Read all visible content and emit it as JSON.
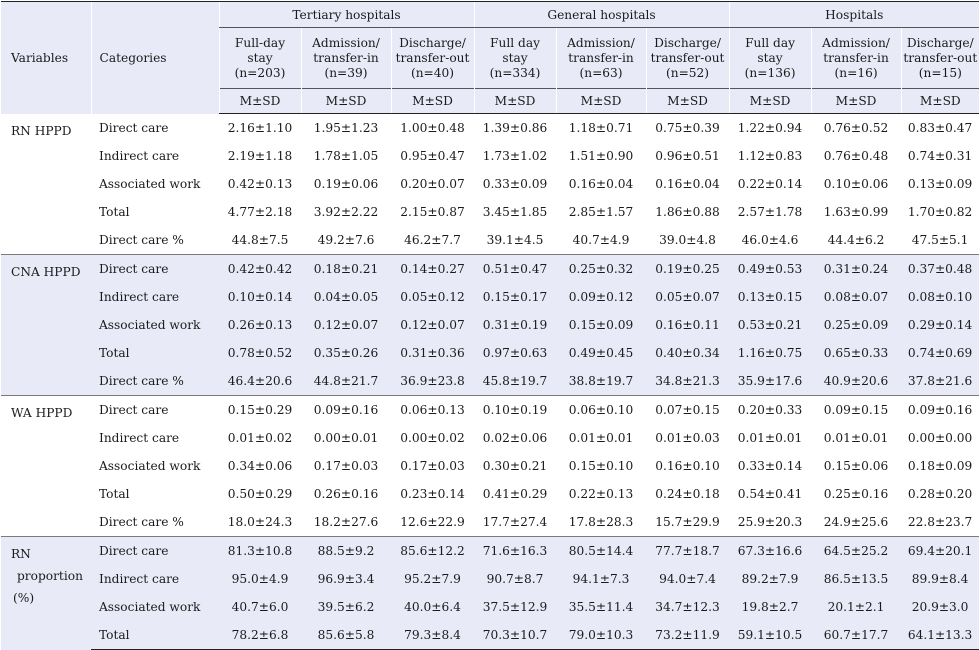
{
  "headers": {
    "variables": "Variables",
    "categories": "Categories",
    "groups": [
      "Tertiary hospitals",
      "General hospitals",
      "Hospitals"
    ],
    "subcols": [
      [
        "Full-day",
        "stay",
        "(n=203)"
      ],
      [
        "Admission/",
        "transfer-in",
        "(n=39)"
      ],
      [
        "Discharge/",
        "transfer-out",
        "(n=40)"
      ],
      [
        "Full day",
        "stay",
        "(n=334)"
      ],
      [
        "Admission/",
        "transfer-in",
        "(n=63)"
      ],
      [
        "Discharge/",
        "transfer-out",
        "(n=52)"
      ],
      [
        "Full day",
        "stay",
        "(n=136)"
      ],
      [
        "Admission/",
        "transfer-in",
        "(n=16)"
      ],
      [
        "Discharge/",
        "transfer-out",
        "(n=15)"
      ]
    ],
    "msd": "M±SD"
  },
  "groups": [
    {
      "variable": [
        "RN HPPD"
      ],
      "shaded": false,
      "rows": [
        {
          "category": "Direct care",
          "values": [
            "2.16±1.10",
            "1.95±1.23",
            "1.00±0.48",
            "1.39±0.86",
            "1.18±0.71",
            "0.75±0.39",
            "1.22±0.94",
            "0.76±0.52",
            "0.83±0.47"
          ]
        },
        {
          "category": "Indirect care",
          "values": [
            "2.19±1.18",
            "1.78±1.05",
            "0.95±0.47",
            "1.73±1.02",
            "1.51±0.90",
            "0.96±0.51",
            "1.12±0.83",
            "0.76±0.48",
            "0.74±0.31"
          ]
        },
        {
          "category": "Associated work",
          "values": [
            "0.42±0.13",
            "0.19±0.06",
            "0.20±0.07",
            "0.33±0.09",
            "0.16±0.04",
            "0.16±0.04",
            "0.22±0.14",
            "0.10±0.06",
            "0.13±0.09"
          ]
        },
        {
          "category": "Total",
          "values": [
            "4.77±2.18",
            "3.92±2.22",
            "2.15±0.87",
            "3.45±1.85",
            "2.85±1.57",
            "1.86±0.88",
            "2.57±1.78",
            "1.63±0.99",
            "1.70±0.82"
          ]
        },
        {
          "category": "Direct care %",
          "values": [
            "44.8±7.5",
            "49.2±7.6",
            "46.2±7.7",
            "39.1±4.5",
            "40.7±4.9",
            "39.0±4.8",
            "46.0±4.6",
            "44.4±6.2",
            "47.5±5.1"
          ]
        }
      ]
    },
    {
      "variable": [
        "CNA HPPD"
      ],
      "shaded": true,
      "rows": [
        {
          "category": "Direct care",
          "values": [
            "0.42±0.42",
            "0.18±0.21",
            "0.14±0.27",
            "0.51±0.47",
            "0.25±0.32",
            "0.19±0.25",
            "0.49±0.53",
            "0.31±0.24",
            "0.37±0.48"
          ]
        },
        {
          "category": "Indirect care",
          "values": [
            "0.10±0.14",
            "0.04±0.05",
            "0.05±0.12",
            "0.15±0.17",
            "0.09±0.12",
            "0.05±0.07",
            "0.13±0.15",
            "0.08±0.07",
            "0.08±0.10"
          ]
        },
        {
          "category": "Associated work",
          "values": [
            "0.26±0.13",
            "0.12±0.07",
            "0.12±0.07",
            "0.31±0.19",
            "0.15±0.09",
            "0.16±0.11",
            "0.53±0.21",
            "0.25±0.09",
            "0.29±0.14"
          ]
        },
        {
          "category": "Total",
          "values": [
            "0.78±0.52",
            "0.35±0.26",
            "0.31±0.36",
            "0.97±0.63",
            "0.49±0.45",
            "0.40±0.34",
            "1.16±0.75",
            "0.65±0.33",
            "0.74±0.69"
          ]
        },
        {
          "category": "Direct care %",
          "values": [
            "46.4±20.6",
            "44.8±21.7",
            "36.9±23.8",
            "45.8±19.7",
            "38.8±19.7",
            "34.8±21.3",
            "35.9±17.6",
            "40.9±20.6",
            "37.8±21.6"
          ]
        }
      ]
    },
    {
      "variable": [
        "WA HPPD"
      ],
      "shaded": false,
      "rows": [
        {
          "category": "Direct care",
          "values": [
            "0.15±0.29",
            "0.09±0.16",
            "0.06±0.13",
            "0.10±0.19",
            "0.06±0.10",
            "0.07±0.15",
            "0.20±0.33",
            "0.09±0.15",
            "0.09±0.16"
          ]
        },
        {
          "category": "Indirect care",
          "values": [
            "0.01±0.02",
            "0.00±0.01",
            "0.00±0.02",
            "0.02±0.06",
            "0.01±0.01",
            "0.01±0.03",
            "0.01±0.01",
            "0.01±0.01",
            "0.00±0.00"
          ]
        },
        {
          "category": "Associated work",
          "values": [
            "0.34±0.06",
            "0.17±0.03",
            "0.17±0.03",
            "0.30±0.21",
            "0.15±0.10",
            "0.16±0.10",
            "0.33±0.14",
            "0.15±0.06",
            "0.18±0.09"
          ]
        },
        {
          "category": "Total",
          "values": [
            "0.50±0.29",
            "0.26±0.16",
            "0.23±0.14",
            "0.41±0.29",
            "0.22±0.13",
            "0.24±0.18",
            "0.54±0.41",
            "0.25±0.16",
            "0.28±0.20"
          ]
        },
        {
          "category": "Direct care %",
          "values": [
            "18.0±24.3",
            "18.2±27.6",
            "12.6±22.9",
            "17.7±27.4",
            "17.8±28.3",
            "15.7±29.9",
            "25.9±20.3",
            "24.9±25.6",
            "22.8±23.7"
          ]
        }
      ]
    },
    {
      "variable": [
        "RN",
        "proportion",
        "(%)"
      ],
      "shaded": true,
      "rows": [
        {
          "category": "Direct care",
          "values": [
            "81.3±10.8",
            "88.5±9.2",
            "85.6±12.2",
            "71.6±16.3",
            "80.5±14.4",
            "77.7±18.7",
            "67.3±16.6",
            "64.5±25.2",
            "69.4±20.1"
          ]
        },
        {
          "category": "Indirect care",
          "values": [
            "95.0±4.9",
            "96.9±3.4",
            "95.2±7.9",
            "90.7±8.7",
            "94.1±7.3",
            "94.0±7.4",
            "89.2±7.9",
            "86.5±13.5",
            "89.9±8.4"
          ]
        },
        {
          "category": "Associated work",
          "values": [
            "40.7±6.0",
            "39.5±6.2",
            "40.0±6.4",
            "37.5±12.9",
            "35.5±11.4",
            "34.7±12.3",
            "19.8±2.7",
            "20.1±2.1",
            "20.9±3.0"
          ]
        },
        {
          "category": "Total",
          "values": [
            "78.2±6.8",
            "85.6±5.8",
            "79.3±8.4",
            "70.3±10.7",
            "79.0±10.3",
            "73.2±11.9",
            "59.1±10.5",
            "60.7±17.7",
            "64.1±13.3"
          ]
        }
      ]
    }
  ]
}
